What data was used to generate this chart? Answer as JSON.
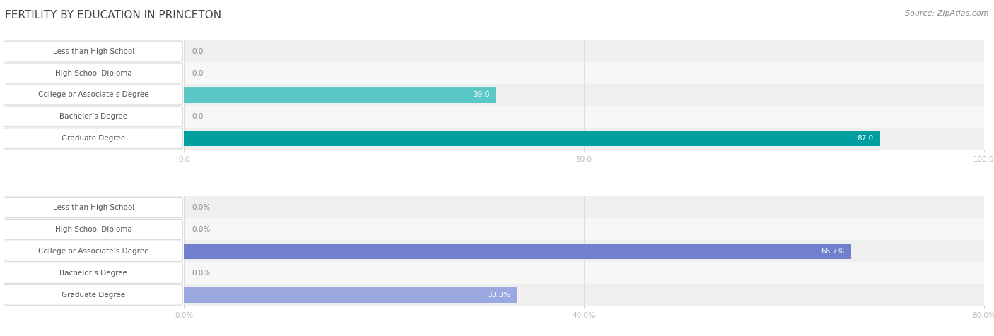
{
  "title": "FERTILITY BY EDUCATION IN PRINCETON",
  "source": "Source: ZipAtlas.com",
  "chart1": {
    "categories": [
      "Less than High School",
      "High School Diploma",
      "College or Associate’s Degree",
      "Bachelor’s Degree",
      "Graduate Degree"
    ],
    "values": [
      0.0,
      0.0,
      39.0,
      0.0,
      87.0
    ],
    "xmax": 100.0,
    "xticks": [
      0.0,
      50.0,
      100.0
    ],
    "xtick_labels": [
      "0.0",
      "50.0",
      "100.0"
    ],
    "bar_color": "#5bc8c8",
    "bar_color_max": "#00a0a0",
    "label_suffix": ""
  },
  "chart2": {
    "categories": [
      "Less than High School",
      "High School Diploma",
      "College or Associate’s Degree",
      "Bachelor’s Degree",
      "Graduate Degree"
    ],
    "values": [
      0.0,
      0.0,
      66.7,
      0.0,
      33.3
    ],
    "xmax": 80.0,
    "xticks": [
      0.0,
      40.0,
      80.0
    ],
    "xtick_labels": [
      "0.0%",
      "40.0%",
      "80.0%"
    ],
    "bar_color": "#9ba8e0",
    "bar_color_max": "#7080cc",
    "label_suffix": "%"
  },
  "label_color": "#555555",
  "value_color_outside": "#888888",
  "title_color": "#444444",
  "source_color": "#888888",
  "row_bg_even": "#efefef",
  "row_bg_odd": "#f7f7f7",
  "label_box_color": "#ffffff",
  "label_box_edge": "#cccccc",
  "grid_color": "#dddddd",
  "label_fontsize": 7.5,
  "value_fontsize": 7.5,
  "title_fontsize": 11,
  "source_fontsize": 8
}
